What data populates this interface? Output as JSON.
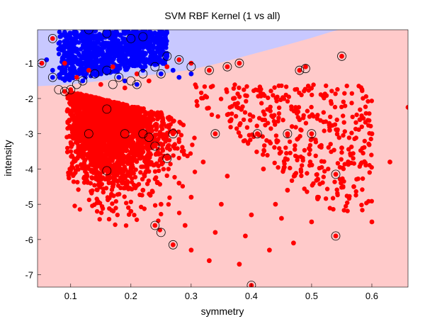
{
  "chart_data": {
    "type": "scatter",
    "title": "SVM RBF Kernel (1 vs all)",
    "xlabel": "symmetry",
    "ylabel": "intensity",
    "xlim": [
      0.045,
      0.66
    ],
    "ylim": [
      -7.35,
      -0.05
    ],
    "xticks": [
      0.1,
      0.2,
      0.3,
      0.4,
      0.5,
      0.6
    ],
    "yticks": [
      -1,
      -2,
      -3,
      -4,
      -5,
      -6,
      -7
    ],
    "grid": false,
    "colors": {
      "class_one": "#0000ff",
      "class_rest": "#ff0000",
      "region_one": "#c8c8ff",
      "region_rest": "#ffcaca",
      "support_vector_ring": "#000000"
    },
    "decision_boundary": [
      [
        0.045,
        -1.65
      ],
      [
        0.1,
        -1.6
      ],
      [
        0.15,
        -1.5
      ],
      [
        0.2,
        -1.38
      ],
      [
        0.25,
        -1.3
      ],
      [
        0.3,
        -1.18
      ],
      [
        0.35,
        -0.98
      ],
      [
        0.4,
        -0.75
      ],
      [
        0.45,
        -0.52
      ],
      [
        0.5,
        -0.28
      ],
      [
        0.53,
        -0.12
      ],
      [
        0.545,
        -0.05
      ]
    ],
    "series": [
      {
        "name": "1",
        "points": [
          [
            0.09,
            -0.12
          ],
          [
            0.1,
            -0.3
          ],
          [
            0.11,
            -0.18
          ],
          [
            0.12,
            -0.05
          ],
          [
            0.13,
            -0.4
          ],
          [
            0.14,
            -0.25
          ],
          [
            0.15,
            -0.6
          ],
          [
            0.16,
            -0.15
          ],
          [
            0.17,
            -0.9
          ],
          [
            0.18,
            -0.45
          ],
          [
            0.19,
            -1.1
          ],
          [
            0.2,
            -0.3
          ],
          [
            0.21,
            -0.7
          ],
          [
            0.22,
            -1.2
          ],
          [
            0.23,
            -0.5
          ],
          [
            0.24,
            -1.0
          ],
          [
            0.25,
            -1.3
          ],
          [
            0.08,
            -0.6
          ],
          [
            0.07,
            -1.2
          ],
          [
            0.06,
            -0.9
          ],
          [
            0.1,
            -1.0
          ],
          [
            0.12,
            -0.8
          ],
          [
            0.14,
            -1.3
          ],
          [
            0.16,
            -1.2
          ],
          [
            0.18,
            -1.4
          ],
          [
            0.27,
            -1.2
          ],
          [
            0.26,
            -0.8
          ],
          [
            0.22,
            -0.2
          ],
          [
            0.15,
            -0.9
          ],
          [
            0.11,
            -0.6
          ],
          [
            0.09,
            -0.8
          ],
          [
            0.13,
            -1.1
          ],
          [
            0.17,
            -0.3
          ],
          [
            0.2,
            -0.9
          ],
          [
            0.24,
            -0.4
          ],
          [
            0.28,
            -1.4
          ],
          [
            0.3,
            -1.3
          ],
          [
            0.07,
            -1.4
          ],
          [
            0.12,
            -1.5
          ],
          [
            0.19,
            -1.5
          ],
          [
            0.21,
            -1.6
          ]
        ]
      },
      {
        "name": "all",
        "points": [
          [
            0.07,
            -0.3
          ],
          [
            0.09,
            -1.0
          ],
          [
            0.11,
            -1.4
          ],
          [
            0.13,
            -1.2
          ],
          [
            0.15,
            -1.6
          ],
          [
            0.17,
            -1.1
          ],
          [
            0.19,
            -1.7
          ],
          [
            0.21,
            -1.3
          ],
          [
            0.23,
            -1.5
          ],
          [
            0.26,
            -1.1
          ],
          [
            0.28,
            -0.9
          ],
          [
            0.3,
            -1.0
          ],
          [
            0.33,
            -1.2
          ],
          [
            0.36,
            -1.1
          ],
          [
            0.38,
            -1.0
          ],
          [
            0.48,
            -1.2
          ],
          [
            0.49,
            -1.1
          ],
          [
            0.55,
            -0.8
          ],
          [
            0.052,
            -1.0
          ],
          [
            0.09,
            -1.8
          ],
          [
            0.1,
            -1.75
          ],
          [
            0.12,
            -2.0
          ],
          [
            0.14,
            -2.2
          ],
          [
            0.16,
            -2.3
          ],
          [
            0.13,
            -3.0
          ],
          [
            0.19,
            -3.0
          ],
          [
            0.22,
            -3.0
          ],
          [
            0.23,
            -3.1
          ],
          [
            0.27,
            -3.0
          ],
          [
            0.34,
            -3.0
          ],
          [
            0.41,
            -3.0
          ],
          [
            0.46,
            -3.0
          ],
          [
            0.5,
            -3.0
          ],
          [
            0.58,
            -2.6
          ],
          [
            0.6,
            -3.0
          ],
          [
            0.66,
            -2.25
          ],
          [
            0.24,
            -3.35
          ],
          [
            0.26,
            -3.7
          ],
          [
            0.16,
            -4.05
          ],
          [
            0.17,
            -4.5
          ],
          [
            0.22,
            -4.6
          ],
          [
            0.25,
            -5.0
          ],
          [
            0.3,
            -4.8
          ],
          [
            0.35,
            -5.0
          ],
          [
            0.4,
            -5.3
          ],
          [
            0.45,
            -5.4
          ],
          [
            0.5,
            -5.5
          ],
          [
            0.54,
            -4.15
          ],
          [
            0.57,
            -4.5
          ],
          [
            0.6,
            -5.5
          ],
          [
            0.63,
            -3.8
          ],
          [
            0.24,
            -5.6
          ],
          [
            0.27,
            -6.15
          ],
          [
            0.3,
            -6.3
          ],
          [
            0.33,
            -6.6
          ],
          [
            0.38,
            -6.7
          ],
          [
            0.4,
            -7.3
          ],
          [
            0.43,
            -6.3
          ],
          [
            0.47,
            -6.1
          ],
          [
            0.54,
            -5.9
          ],
          [
            0.2,
            -4.0
          ],
          [
            0.28,
            -4.4
          ],
          [
            0.32,
            -3.8
          ],
          [
            0.36,
            -4.2
          ],
          [
            0.42,
            -4.0
          ],
          [
            0.46,
            -4.6
          ],
          [
            0.18,
            -2.6
          ],
          [
            0.25,
            -2.4
          ],
          [
            0.31,
            -2.2
          ],
          [
            0.37,
            -2.0
          ],
          [
            0.43,
            -2.3
          ],
          [
            0.48,
            -2.6
          ],
          [
            0.53,
            -2.9
          ],
          [
            0.55,
            -3.4
          ],
          [
            0.2,
            -5.2
          ],
          [
            0.29,
            -5.6
          ],
          [
            0.34,
            -5.8
          ],
          [
            0.39,
            -5.9
          ],
          [
            0.44,
            -5.0
          ],
          [
            0.51,
            -4.8
          ]
        ]
      }
    ],
    "support_vectors": [
      [
        0.07,
        -0.3
      ],
      [
        0.13,
        -0.05
      ],
      [
        0.16,
        -0.15
      ],
      [
        0.2,
        -0.3
      ],
      [
        0.22,
        -0.25
      ],
      [
        0.052,
        -1.0
      ],
      [
        0.07,
        -1.4
      ],
      [
        0.08,
        -1.75
      ],
      [
        0.09,
        -1.8
      ],
      [
        0.1,
        -1.75
      ],
      [
        0.11,
        -1.6
      ],
      [
        0.12,
        -1.5
      ],
      [
        0.14,
        -1.3
      ],
      [
        0.16,
        -1.2
      ],
      [
        0.17,
        -1.6
      ],
      [
        0.18,
        -1.4
      ],
      [
        0.2,
        -1.5
      ],
      [
        0.21,
        -1.6
      ],
      [
        0.22,
        -1.3
      ],
      [
        0.24,
        -1.1
      ],
      [
        0.25,
        -1.3
      ],
      [
        0.26,
        -0.8
      ],
      [
        0.28,
        -0.9
      ],
      [
        0.3,
        -1.1
      ],
      [
        0.33,
        -1.2
      ],
      [
        0.36,
        -1.1
      ],
      [
        0.38,
        -1.0
      ],
      [
        0.48,
        -1.2
      ],
      [
        0.49,
        -1.15
      ],
      [
        0.55,
        -0.8
      ],
      [
        0.13,
        -3.0
      ],
      [
        0.16,
        -2.3
      ],
      [
        0.19,
        -3.0
      ],
      [
        0.22,
        -3.0
      ],
      [
        0.23,
        -3.1
      ],
      [
        0.24,
        -3.35
      ],
      [
        0.26,
        -3.7
      ],
      [
        0.27,
        -3.0
      ],
      [
        0.34,
        -3.0
      ],
      [
        0.41,
        -3.0
      ],
      [
        0.46,
        -3.0
      ],
      [
        0.5,
        -3.0
      ],
      [
        0.16,
        -4.05
      ],
      [
        0.54,
        -4.15
      ],
      [
        0.24,
        -5.6
      ],
      [
        0.25,
        -5.8
      ],
      [
        0.27,
        -6.15
      ],
      [
        0.4,
        -7.3
      ],
      [
        0.54,
        -5.9
      ]
    ]
  }
}
